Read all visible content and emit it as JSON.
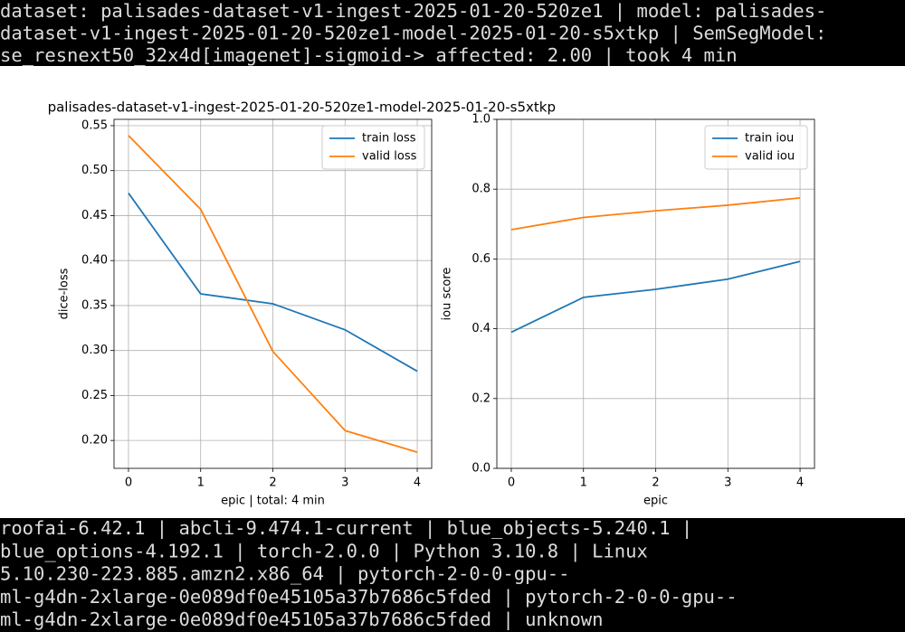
{
  "header": {
    "lines": [
      "dataset: palisades-dataset-v1-ingest-2025-01-20-520ze1 | model: palisades-",
      "dataset-v1-ingest-2025-01-20-520ze1-model-2025-01-20-s5xtkp | SemSegModel:",
      "se_resnext50_32x4d[imagenet]-sigmoid-> affected: 2.00 | took 4 min"
    ]
  },
  "footer": {
    "lines": [
      "roofai-6.42.1 | abcli-9.474.1-current | blue_objects-5.240.1 |",
      "blue_options-4.192.1 | torch-2.0.0 | Python 3.10.8 | Linux",
      "5.10.230-223.885.amzn2.x86_64 | pytorch-2-0-0-gpu--",
      "ml-g4dn-2xlarge-0e089df0e45105a37b7686c5fded | pytorch-2-0-0-gpu--",
      "ml-g4dn-2xlarge-0e089df0e45105a37b7686c5fded | unknown"
    ]
  },
  "chart_data": [
    {
      "type": "line",
      "title": "palisades-dataset-v1-ingest-2025-01-20-520ze1-model-2025-01-20-s5xtkp",
      "x_label": "epic | total: 4 min",
      "y_label": "dice-loss",
      "x": [
        0,
        1,
        2,
        3,
        4
      ],
      "series": [
        {
          "name": "train loss",
          "color": "#1f77b4",
          "values": [
            0.475,
            0.363,
            0.352,
            0.323,
            0.277
          ]
        },
        {
          "name": "valid loss",
          "color": "#ff7f0e",
          "values": [
            0.539,
            0.457,
            0.299,
            0.211,
            0.187
          ]
        }
      ],
      "xlim": [
        -0.2,
        4.2
      ],
      "xticks": [
        0,
        1,
        2,
        3,
        4
      ],
      "ylim": [
        0.169,
        0.557
      ],
      "yticks": [
        {
          "value": 0.2,
          "label": "0.20"
        },
        0.25,
        {
          "value": 0.3,
          "label": "0.30"
        },
        0.35,
        {
          "value": 0.4,
          "label": "0.40"
        },
        0.45,
        {
          "value": 0.5,
          "label": "0.50"
        },
        0.55
      ],
      "grid": true,
      "legend": "upper right"
    },
    {
      "type": "line",
      "x_label": "epic",
      "y_label": "iou score",
      "x": [
        0,
        1,
        2,
        3,
        4
      ],
      "series": [
        {
          "name": "train iou",
          "color": "#1f77b4",
          "values": [
            0.39,
            0.49,
            0.513,
            0.542,
            0.593
          ]
        },
        {
          "name": "valid iou",
          "color": "#ff7f0e",
          "values": [
            0.684,
            0.719,
            0.738,
            0.754,
            0.775
          ]
        }
      ],
      "xlim": [
        -0.2,
        4.2
      ],
      "xticks": [
        0,
        1,
        2,
        3,
        4
      ],
      "ylim": [
        0,
        1
      ],
      "yticks": [
        {
          "value": 0,
          "label": "0.0"
        },
        0.2,
        0.4,
        0.6,
        0.8,
        {
          "value": 1,
          "label": "1.0"
        }
      ],
      "grid": true,
      "legend": "upper right"
    }
  ]
}
